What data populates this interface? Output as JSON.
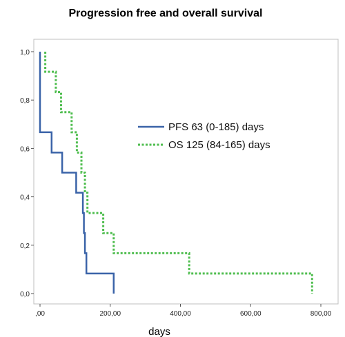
{
  "chart_data": {
    "type": "line",
    "title": "Progression free and overall survival",
    "xlabel": "days",
    "ylabel": "",
    "xlim": [
      0,
      800
    ],
    "ylim": [
      0,
      1
    ],
    "x_ticks": [
      0,
      200,
      400,
      600,
      800
    ],
    "x_tick_labels": [
      ",00",
      "200,00",
      "400,00",
      "600,00",
      "800,00"
    ],
    "y_ticks": [
      0,
      0.2,
      0.4,
      0.6,
      0.8,
      1.0
    ],
    "y_tick_labels": [
      "0,0",
      "0,2",
      "0,4",
      "0,6",
      "0,8",
      "1,0"
    ],
    "grid": false,
    "legend_position": "center-right",
    "series": [
      {
        "name": "PFS 63 (0-185) days",
        "color": "#3a63a8",
        "style": "solid",
        "step": true,
        "points": [
          [
            0,
            1.0
          ],
          [
            0,
            0.667
          ],
          [
            33,
            0.667
          ],
          [
            33,
            0.583
          ],
          [
            63,
            0.583
          ],
          [
            63,
            0.5
          ],
          [
            103,
            0.5
          ],
          [
            103,
            0.417
          ],
          [
            122,
            0.417
          ],
          [
            122,
            0.333
          ],
          [
            125,
            0.333
          ],
          [
            125,
            0.25
          ],
          [
            128,
            0.25
          ],
          [
            128,
            0.167
          ],
          [
            132,
            0.167
          ],
          [
            132,
            0.083
          ],
          [
            210,
            0.083
          ],
          [
            210,
            0.0
          ]
        ]
      },
      {
        "name": "OS 125 (84-165) days",
        "color": "#4ebd4e",
        "style": "dotted",
        "step": true,
        "points": [
          [
            15,
            1.0
          ],
          [
            15,
            0.917
          ],
          [
            45,
            0.917
          ],
          [
            45,
            0.833
          ],
          [
            60,
            0.833
          ],
          [
            60,
            0.75
          ],
          [
            90,
            0.75
          ],
          [
            90,
            0.667
          ],
          [
            105,
            0.667
          ],
          [
            105,
            0.583
          ],
          [
            118,
            0.583
          ],
          [
            118,
            0.5
          ],
          [
            128,
            0.5
          ],
          [
            128,
            0.417
          ],
          [
            135,
            0.417
          ],
          [
            135,
            0.333
          ],
          [
            180,
            0.333
          ],
          [
            180,
            0.25
          ],
          [
            210,
            0.25
          ],
          [
            210,
            0.167
          ],
          [
            425,
            0.167
          ],
          [
            425,
            0.083
          ],
          [
            775,
            0.083
          ],
          [
            775,
            0.0
          ]
        ]
      }
    ]
  }
}
